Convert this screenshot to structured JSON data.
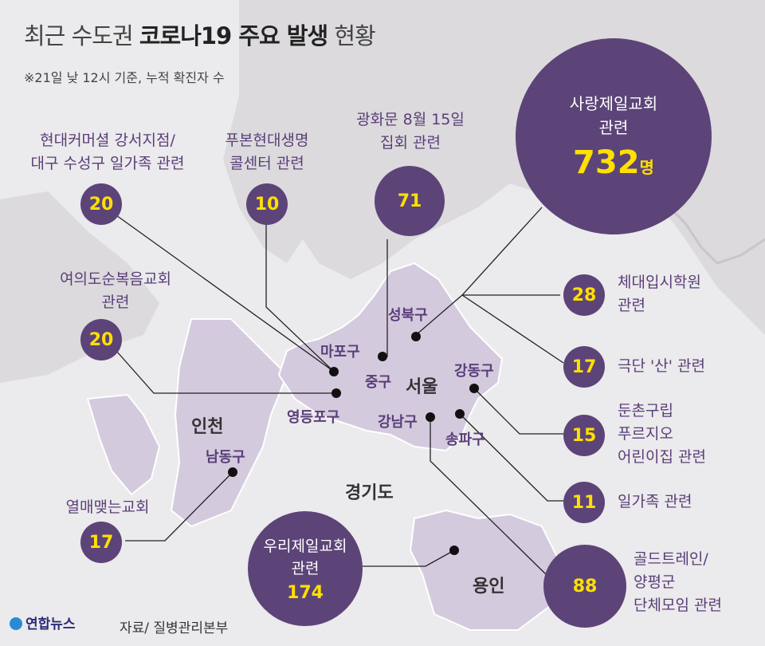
{
  "title": {
    "light_1": "최근 수도권",
    "bold": "코로나19 주요 발생",
    "light_2": "현황"
  },
  "note": "※21일 낮 12시 기준, 누적 확진자 수",
  "regions": {
    "seoul": "서울",
    "incheon": "인천",
    "gyeonggi": "경기도",
    "yongin": "용인"
  },
  "districts": {
    "mapo": "마포구",
    "jung": "중구",
    "seongbuk": "성북구",
    "gangdong": "강동구",
    "yeongdeungpo": "영등포구",
    "gangnam": "강남구",
    "songpa": "송파구",
    "namdong": "남동구"
  },
  "clusters": {
    "hyundai_commercial": {
      "label_1": "현대커머셜 강서지점/",
      "label_2": "대구 수성구 일가족 관련",
      "count": "20"
    },
    "poobon": {
      "label_1": "푸본현대생명",
      "label_2": "콜센터 관련",
      "count": "10"
    },
    "gwanghwamun": {
      "label_1": "광화문 8월 15일",
      "label_2": "집회 관련",
      "count": "71"
    },
    "sarang": {
      "label_1": "사랑제일교회",
      "label_2": "관련",
      "count": "732",
      "unit": "명"
    },
    "yeouido": {
      "label_1": "여의도순복음교회",
      "label_2": "관련",
      "count": "20"
    },
    "sports_academy": {
      "label_1": "체대입시학원",
      "label_2": "관련",
      "count": "28"
    },
    "theater": {
      "label_1": "극단 '산' 관련",
      "count": "17"
    },
    "dunchon": {
      "label_1": "둔촌구립",
      "label_2": "푸르지오",
      "label_3": "어린이집 관련",
      "count": "15"
    },
    "family": {
      "label_1": "일가족 관련",
      "count": "11"
    },
    "yeolmae": {
      "label_1": "열매맺는교회",
      "count": "17"
    },
    "woori": {
      "label_1": "우리제일교회",
      "label_2": "관련",
      "count": "174"
    },
    "golden_train": {
      "label_1": "골드트레인/",
      "label_2": "양평군",
      "label_3": "단체모임 관련",
      "count": "88"
    }
  },
  "source": "자료/ 질병관리본부",
  "logo": "연합뉴스",
  "colors": {
    "circle": "#5c4478",
    "number": "#ffe000",
    "seoul_fill": "#d4cade",
    "label_purple": "#5a3e78",
    "background": "#ebeaec"
  }
}
